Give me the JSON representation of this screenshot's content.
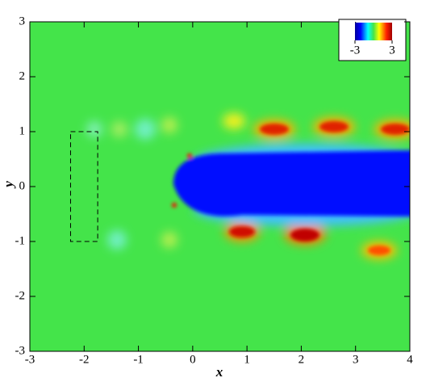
{
  "chart_data": {
    "type": "contour",
    "xlabel": "x",
    "ylabel": "y",
    "xlim": [
      -3,
      4
    ],
    "ylim": [
      -3,
      3
    ],
    "xticks": [
      -3,
      -2,
      -1,
      0,
      1,
      2,
      3,
      4
    ],
    "yticks": [
      -3,
      -2,
      -1,
      0,
      1,
      2,
      3
    ],
    "box": {
      "x": [
        -2.25,
        -1.75
      ],
      "y": [
        -1,
        1
      ]
    },
    "colorbar": {
      "lim": [
        -3,
        3
      ],
      "ticks": [
        -3,
        3
      ]
    }
  }
}
